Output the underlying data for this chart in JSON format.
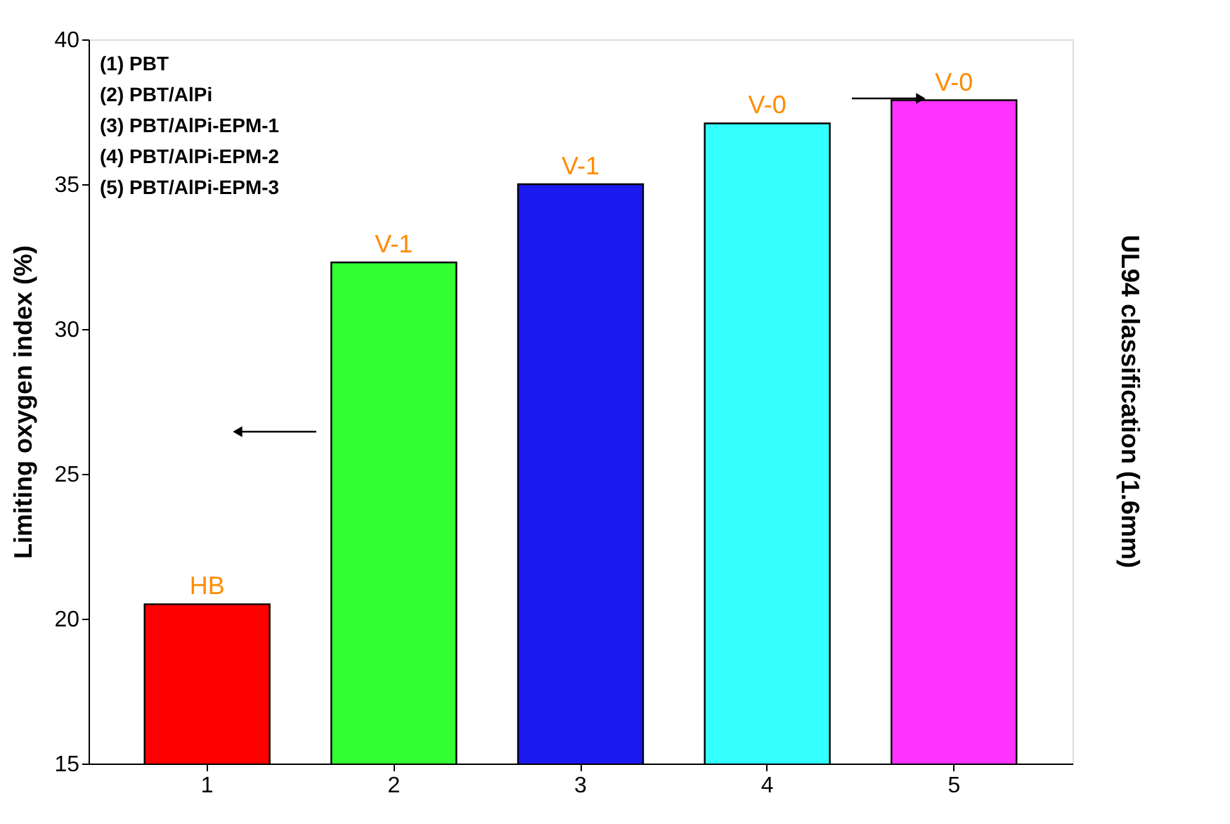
{
  "chart_data": {
    "type": "bar",
    "ylabel": "Limiting oxygen index (%)",
    "y2label": "UL94 classification (1.6mm)",
    "categories": [
      "1",
      "2",
      "3",
      "4",
      "5"
    ],
    "values": [
      20.5,
      32.3,
      35.0,
      37.1,
      37.9
    ],
    "colors": [
      "#ff0000",
      "#33ff33",
      "#1a1aee",
      "#33ffff",
      "#ff33ff"
    ],
    "value_labels": [
      "HB",
      "V-1",
      "V-1",
      "V-0",
      "V-0"
    ],
    "ylim": [
      15,
      40
    ],
    "yticks": [
      15,
      20,
      25,
      30,
      35,
      40
    ],
    "grid": false,
    "annotations": [
      "(1) PBT",
      "(2) PBT/AlPi",
      "(3) PBT/AlPi-EPM-1",
      "(4) PBT/AlPi-EPM-2",
      "(5) PBT/AlPi-EPM-3"
    ]
  }
}
